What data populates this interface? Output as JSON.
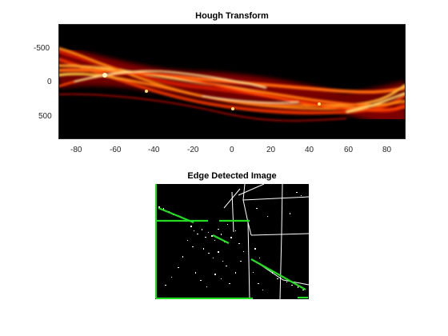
{
  "figure": {
    "top_panel": {
      "title": "Hough Transform",
      "x_ticks": [
        "-80",
        "-60",
        "-40",
        "-20",
        "0",
        "20",
        "40",
        "60",
        "80"
      ],
      "y_ticks": [
        "-500",
        "0",
        "500"
      ],
      "colormap": "hot"
    },
    "bottom_panel": {
      "title": "Edge Detected Image",
      "line_color": "#22dd22"
    }
  }
}
